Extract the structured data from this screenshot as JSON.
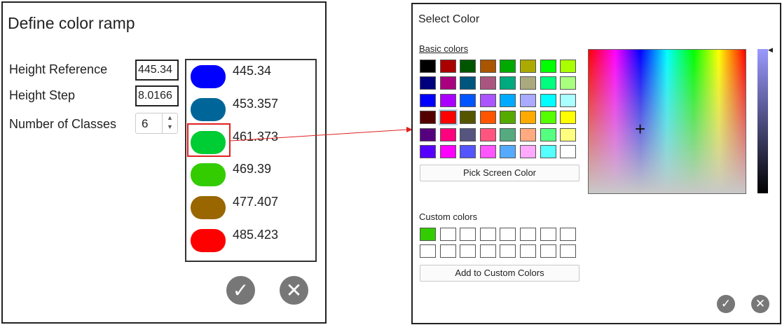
{
  "ramp_dialog": {
    "title": "Define color ramp",
    "height_reference_label": "Height Reference",
    "height_reference_value": "445.34",
    "height_step_label": "Height Step",
    "height_step_value": "8.0166",
    "classes_label": "Number of Classes",
    "classes_value": "6",
    "classes": [
      {
        "value": "445.34",
        "color": "#0000ff"
      },
      {
        "value": "453.357",
        "color": "#006699"
      },
      {
        "value": "461.373",
        "color": "#00cc33"
      },
      {
        "value": "469.39",
        "color": "#33cc00"
      },
      {
        "value": "477.407",
        "color": "#996600"
      },
      {
        "value": "485.423",
        "color": "#ff0000"
      }
    ],
    "selected_index": 2
  },
  "color_dialog": {
    "title": "Select Color",
    "basic_colors_label": "Basic colors",
    "basic_colors": [
      "#000000",
      "#aa0000",
      "#005500",
      "#aa5500",
      "#00aa00",
      "#aaaa00",
      "#00ff00",
      "#aaff00",
      "#00007f",
      "#aa007f",
      "#00557f",
      "#aa557f",
      "#00aa7f",
      "#aaaa7f",
      "#00ff7f",
      "#aaff7f",
      "#0000ff",
      "#aa00ff",
      "#0055ff",
      "#aa55ff",
      "#00aaff",
      "#aaaaff",
      "#00ffff",
      "#aaffff",
      "#550000",
      "#ff0000",
      "#555500",
      "#ff5500",
      "#55aa00",
      "#ffaa00",
      "#55ff00",
      "#ffff00",
      "#55007f",
      "#ff007f",
      "#55557f",
      "#ff557f",
      "#55aa7f",
      "#ffaa7f",
      "#55ff7f",
      "#ffff7f",
      "#5500ff",
      "#ff00ff",
      "#5555ff",
      "#ff55ff",
      "#55aaff",
      "#ffaaff",
      "#55ffff",
      "#ffffff"
    ],
    "selected_basic_index": 25,
    "pick_screen_label": "Pick Screen Color",
    "custom_colors_label": "Custom colors",
    "custom_colors": [
      "#33cc00",
      "#ffffff",
      "#ffffff",
      "#ffffff",
      "#ffffff",
      "#ffffff",
      "#ffffff",
      "#ffffff",
      "#ffffff",
      "#ffffff",
      "#ffffff",
      "#ffffff",
      "#ffffff",
      "#ffffff",
      "#ffffff",
      "#ffffff"
    ],
    "add_custom_label": "Add to Custom Colors"
  },
  "annotation_color": "#e02020"
}
